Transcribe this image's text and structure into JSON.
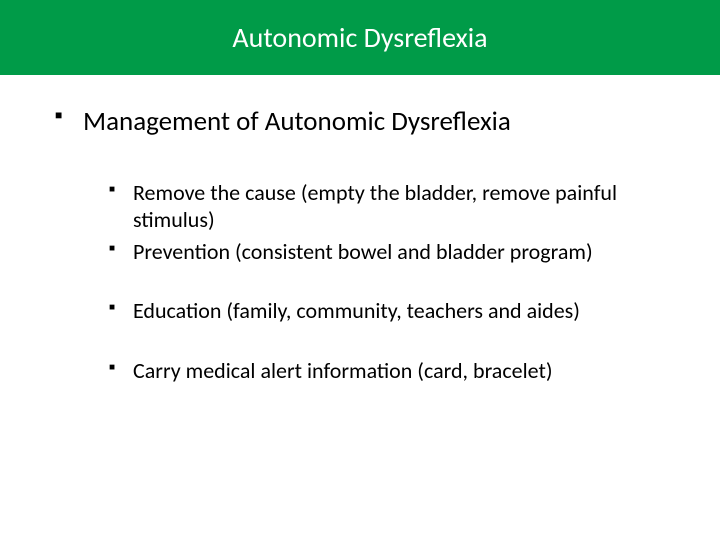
{
  "header": {
    "title": "Autonomic Dysreflexia",
    "background_color": "#009b48",
    "text_color": "#ffffff",
    "title_fontsize": 28
  },
  "content": {
    "main_bullet": "Management of Autonomic Dysreflexia",
    "main_fontsize": 27,
    "sub_fontsize": 22,
    "groups": [
      {
        "items": [
          "Remove the cause (empty the bladder, remove painful stimulus)",
          "Prevention (consistent bowel and bladder program)"
        ]
      },
      {
        "items": [
          "Education (family, community, teachers and aides)"
        ]
      },
      {
        "items": [
          "Carry medical alert information (card, bracelet)"
        ]
      }
    ]
  },
  "colors": {
    "body_bg": "#ffffff",
    "text": "#000000",
    "bullet": "#000000"
  }
}
